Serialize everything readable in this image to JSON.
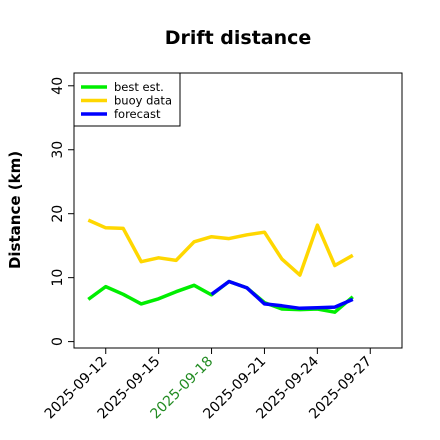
{
  "chart_data": {
    "type": "line",
    "title": "Drift distance",
    "xlabel": "",
    "ylabel": "Distance (km)",
    "ylim": [
      -1,
      42
    ],
    "yticks": [
      0,
      10,
      20,
      30,
      40
    ],
    "xlim": [
      -0.6,
      5.6
    ],
    "x_tick_positions": [
      0,
      1,
      2,
      3,
      4,
      5
    ],
    "x_tick_labels": [
      "2025-09-12",
      "2025-09-15",
      "2025-09-18",
      "2025-09-21",
      "2025-09-24",
      "2025-09-27"
    ],
    "x_tick_colors": [
      "#000000",
      "#000000",
      "#228B22",
      "#000000",
      "#000000",
      "#000000"
    ],
    "x": [
      -0.33,
      0,
      0.33,
      0.67,
      1,
      1.33,
      1.67,
      2,
      2.33,
      2.67,
      3,
      3.33,
      3.67,
      4,
      4.33,
      4.67
    ],
    "legend": {
      "position": "top-left",
      "entries": [
        "best est.",
        "buoy data",
        "forecast"
      ]
    },
    "series": [
      {
        "name": "buoy data",
        "color": "#FFD700",
        "values": [
          19,
          17.8,
          17.7,
          12.5,
          13.1,
          12.7,
          15.6,
          16.4,
          16.1,
          16.7,
          17.1,
          12.9,
          10.4,
          18.2,
          11.9,
          13.5
        ]
      },
      {
        "name": "best est.",
        "color": "#00EE00",
        "values": [
          6.6,
          8.6,
          7.4,
          5.9,
          6.7,
          7.8,
          8.8,
          7.3,
          9.4,
          8.4,
          6.1,
          5.1,
          5.0,
          5.1,
          4.6,
          7.0
        ]
      },
      {
        "name": "forecast",
        "color": "#0000FF",
        "values": [
          null,
          null,
          null,
          null,
          null,
          null,
          null,
          7.4,
          9.4,
          8.4,
          5.9,
          5.6,
          5.2,
          5.3,
          5.4,
          6.6
        ]
      }
    ]
  }
}
